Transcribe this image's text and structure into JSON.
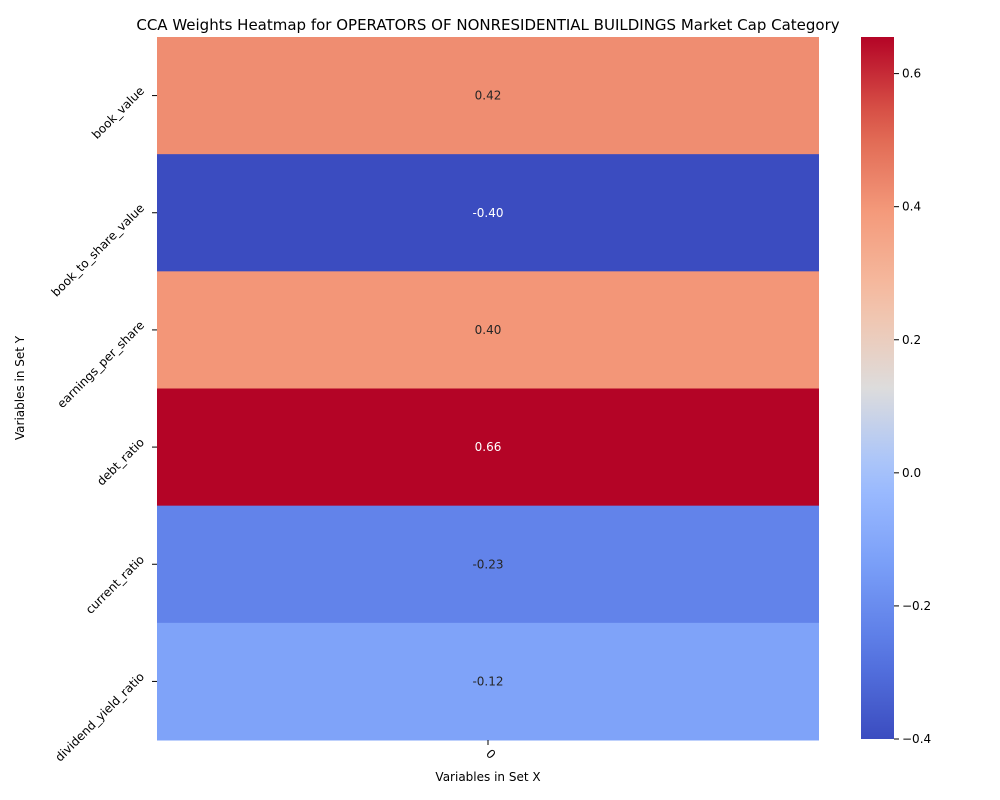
{
  "chart_data": {
    "type": "heatmap",
    "title": "CCA Weights Heatmap for OPERATORS OF NONRESIDENTIAL BUILDINGS Market Cap Category",
    "xlabel": "Variables in Set X",
    "ylabel": "Variables in Set Y",
    "x_categories": [
      "0"
    ],
    "y_categories": [
      "book_value",
      "book_to_share_value",
      "earnings_per_share",
      "debt_ratio",
      "current_ratio",
      "dividend_yield_ratio"
    ],
    "values": [
      [
        0.42
      ],
      [
        -0.4
      ],
      [
        0.4
      ],
      [
        0.66
      ],
      [
        -0.23
      ],
      [
        -0.12
      ]
    ],
    "value_labels": [
      "0.42",
      "-0.40",
      "0.40",
      "0.66",
      "-0.23",
      "-0.12"
    ],
    "colormap": "coolwarm",
    "vmin": -0.4,
    "vmax": 0.655,
    "colorbar_ticks": [
      -0.4,
      -0.2,
      0.0,
      0.2,
      0.4,
      0.6
    ],
    "colorbar_tick_labels": [
      "−0.4",
      "−0.2",
      "0.0",
      "0.2",
      "0.4",
      "0.6"
    ]
  }
}
